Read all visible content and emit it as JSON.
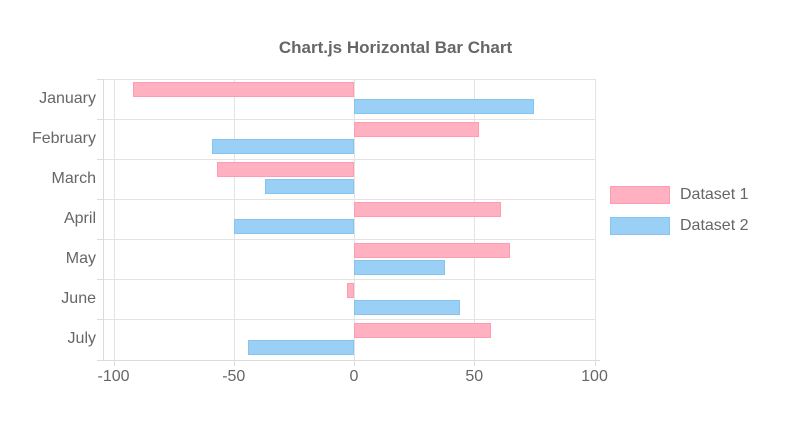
{
  "chart_data": {
    "type": "bar",
    "orientation": "horizontal",
    "title": "Chart.js Horizontal Bar Chart",
    "categories": [
      "January",
      "February",
      "March",
      "April",
      "May",
      "June",
      "July"
    ],
    "series": [
      {
        "name": "Dataset 1",
        "color": "#ffb1c1",
        "border_color": "#ff9cb2",
        "values": [
          -92,
          52,
          -57,
          61,
          65,
          -3,
          57
        ]
      },
      {
        "name": "Dataset 2",
        "color": "#9ad0f5",
        "border_color": "#85c4f0",
        "values": [
          75,
          -59,
          -37,
          -50,
          38,
          44,
          -44
        ]
      }
    ],
    "x_axis": {
      "min": -100,
      "max": 100,
      "tick_step": 50,
      "tick_labels": [
        "-100",
        "-50",
        "0",
        "50",
        "100"
      ]
    },
    "y_axis": {
      "label_color": "#666666"
    },
    "legend": {
      "position": "right",
      "items": [
        "Dataset 1",
        "Dataset 2"
      ]
    },
    "grid": true,
    "colors": {
      "text": "#666666",
      "grid": "#e3e3e3",
      "axis_border": "#dcdcdc",
      "background": "#ffffff"
    }
  }
}
